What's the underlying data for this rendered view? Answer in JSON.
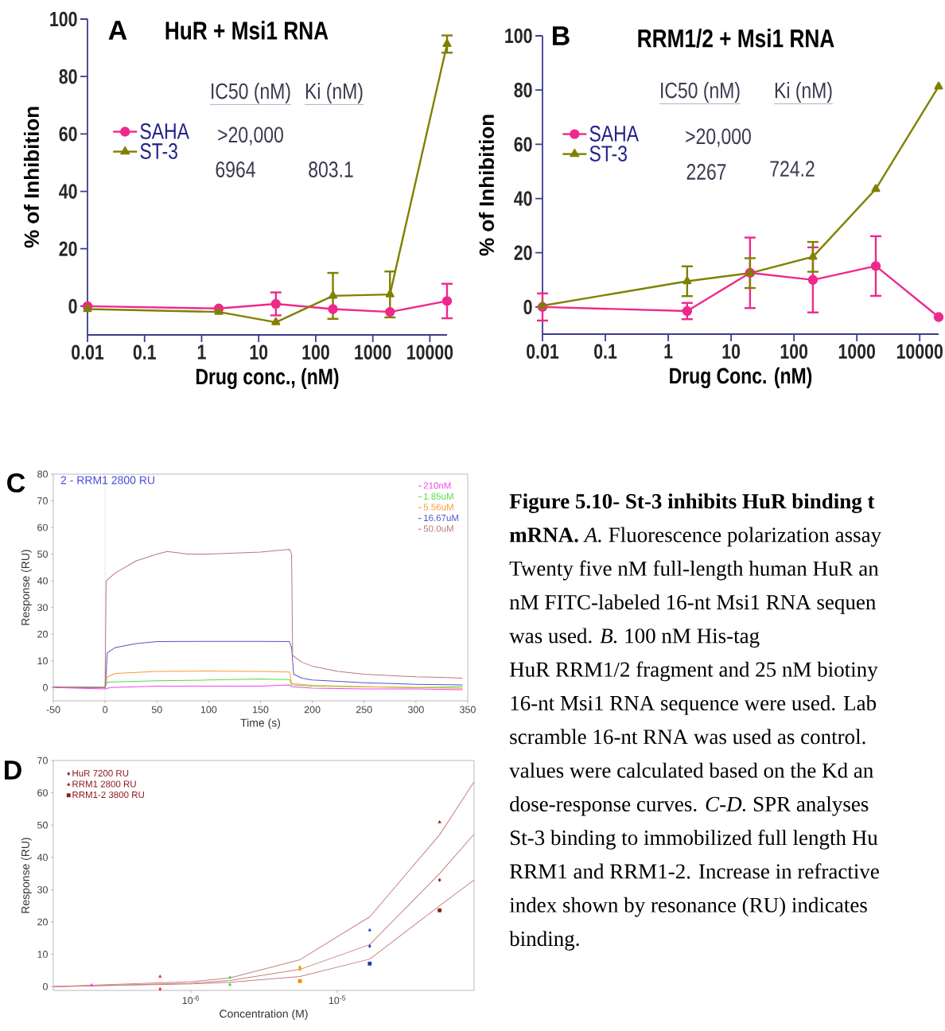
{
  "chart_data": [
    {
      "type": "line",
      "title": "HuR + Msi1 RNA",
      "xlabel": "Drug conc., (nM)",
      "ylabel": "% of Inhibition",
      "log": "x",
      "xlim": [
        0.01,
        20000
      ],
      "xticks": [
        0.01,
        0.1,
        1,
        10,
        100,
        1000,
        10000
      ],
      "ylim": [
        -10,
        100
      ],
      "yticks": [
        0,
        20,
        40,
        60,
        80,
        100
      ],
      "legend": "top left",
      "annotations": [
        "A",
        "IC50 (nM)",
        "Ki (nM)",
        ">20,000",
        "6964",
        "803.1"
      ],
      "x": [
        0.01,
        2,
        20,
        200,
        2000,
        20000
      ],
      "series": [
        {
          "name": "SAHA",
          "color": "#f0288c",
          "marker": "circle",
          "values": [
            0,
            -0.8,
            0.8,
            -1,
            -2,
            1.8
          ],
          "errors": [
            null,
            null,
            4,
            null,
            null,
            6
          ]
        },
        {
          "name": "ST-3",
          "color": "#808000",
          "marker": "triangle",
          "values": [
            -1,
            -2,
            -5.6,
            3.6,
            4.1,
            91.3
          ],
          "errors": [
            null,
            null,
            null,
            8,
            8,
            3
          ]
        }
      ]
    },
    {
      "type": "line",
      "title": "RRM1/2 + Msi1 RNA",
      "xlabel": "Drug Conc. (nM)",
      "ylabel": "% of Inhibition",
      "log": "x",
      "xlim": [
        0.01,
        20000
      ],
      "xticks": [
        0.01,
        0.1,
        1,
        10,
        100,
        1000,
        10000
      ],
      "ylim": [
        -10,
        100
      ],
      "yticks": [
        0,
        20,
        40,
        60,
        80,
        100
      ],
      "legend": "top left",
      "annotations": [
        "B",
        "IC50 (nM)",
        "Ki (nM)",
        ">20,000",
        "2267",
        "724.2"
      ],
      "x": [
        0.01,
        2,
        20,
        200,
        2000,
        20000
      ],
      "series": [
        {
          "name": "SAHA",
          "color": "#f0288c",
          "marker": "circle",
          "values": [
            0,
            -1.5,
            12.6,
            10,
            15.1,
            -3.7
          ],
          "errors": [
            5,
            3,
            13,
            12,
            11,
            null
          ]
        },
        {
          "name": "ST-3",
          "color": "#808000",
          "marker": "triangle",
          "values": [
            0.5,
            9.5,
            12.5,
            18.5,
            43.5,
            81.3
          ],
          "errors": [
            null,
            5.5,
            5.5,
            5.5,
            null,
            null
          ]
        }
      ]
    },
    {
      "type": "line",
      "title": "2 - RRM1 2800 RU",
      "xlabel": "Time (s)",
      "ylabel": "Response (RU)",
      "xlim": [
        -50,
        350
      ],
      "xticks": [
        -50,
        0,
        50,
        100,
        150,
        200,
        250,
        300,
        350
      ],
      "ylim": [
        -5,
        80
      ],
      "yticks": [
        0,
        10,
        20,
        30,
        40,
        50,
        60,
        70,
        80
      ],
      "legend": "top right",
      "annotations": [
        "C"
      ],
      "ref_lines": [
        {
          "axis": "x",
          "value": 0,
          "color": "#d8d8d8"
        }
      ],
      "series": [
        {
          "name": "210nM",
          "color": "#ee44ee",
          "x": [
            -50,
            0,
            5,
            50,
            100,
            150,
            178,
            180,
            200,
            250,
            300,
            345
          ],
          "values": [
            0,
            -0.5,
            0,
            0.5,
            0.5,
            0.5,
            1,
            0.3,
            -0.2,
            -0.5,
            -0.5,
            -0.8
          ]
        },
        {
          "name": "1.85uM",
          "color": "#55dd44",
          "x": [
            -50,
            0,
            2,
            50,
            100,
            150,
            178,
            180,
            200,
            300,
            345
          ],
          "values": [
            0.2,
            0,
            2,
            2.5,
            2.8,
            3.2,
            3,
            1,
            0.5,
            0,
            0.3
          ]
        },
        {
          "name": "5.56uM",
          "color": "#ff9933",
          "x": [
            -50,
            0,
            2,
            10,
            50,
            100,
            150,
            178,
            180,
            200,
            250,
            345
          ],
          "values": [
            0.2,
            0,
            4,
            5.3,
            6,
            6.2,
            6,
            5.8,
            1.5,
            0.8,
            0.3,
            -0.3
          ]
        },
        {
          "name": "16.67uM",
          "color": "#5555cc",
          "x": [
            -50,
            0,
            1,
            2,
            10,
            30,
            50,
            100,
            150,
            178,
            180,
            182,
            190,
            200,
            250,
            300,
            345
          ],
          "values": [
            0.2,
            0,
            5,
            13,
            15,
            16.5,
            17.2,
            17.3,
            17.3,
            17.2,
            15,
            5,
            3.5,
            2.8,
            1.8,
            1.2,
            1
          ]
        },
        {
          "name": "50.0uM",
          "color": "#b87a7a",
          "x": [
            -50,
            -10,
            0,
            1,
            10,
            30,
            50,
            60,
            80,
            100,
            120,
            150,
            170,
            178,
            180,
            181,
            190,
            200,
            225,
            250,
            275,
            300,
            325,
            345
          ],
          "values": [
            0.3,
            0,
            0,
            40,
            43,
            47.5,
            50,
            51,
            50,
            50,
            50.3,
            50.8,
            51.5,
            51.8,
            50,
            12,
            9.5,
            8,
            6,
            5,
            4.5,
            4,
            3.8,
            3.5
          ]
        }
      ]
    },
    {
      "type": "scatter",
      "xlabel": "Concentration (M)",
      "ylabel": "Response (RU)",
      "log": "x",
      "xlim": [
        1.15e-07,
        8.6e-05
      ],
      "xticks": [
        {
          "value": 1e-06,
          "label": "10$^{-6}$"
        },
        {
          "value": 1e-05,
          "label": "10$^{-5}$"
        }
      ],
      "ylim": [
        -1.2,
        70
      ],
      "yticks": [
        0,
        10,
        20,
        30,
        40,
        50,
        60,
        70
      ],
      "legend": "top left",
      "annotations": [
        "D"
      ],
      "series": [
        {
          "name": "HuR 7200 RU",
          "color": "#8b1a1a",
          "marker": "diamond",
          "x": [
            6.17e-07,
            1.85e-06,
            5.56e-06,
            1.667e-05,
            5e-05
          ],
          "values": [
            -0.8,
            0.6,
            5.3,
            12.5,
            33
          ],
          "colors": [
            "#ff2222",
            "#33dd33",
            "#ff8800",
            "#2233bb",
            "#8b1a1a"
          ]
        },
        {
          "name": "RRM1 2800 RU",
          "color": "#8b1a1a",
          "marker": "triangle",
          "x": [
            2.1e-07,
            6.17e-07,
            1.85e-06,
            5.56e-06,
            1.667e-05,
            5e-05
          ],
          "values": [
            0.5,
            3.1,
            2.8,
            6,
            17.5,
            50.9
          ],
          "colors": [
            "#ff33ff",
            "#ff2222",
            "#33dd33",
            "#ff8800",
            "#2233bb",
            "#8b1a1a"
          ]
        },
        {
          "name": "RRM1-2 3800 RU",
          "color": "#8b1a1a",
          "marker": "square",
          "x": [
            5.56e-06,
            1.667e-05,
            5e-05
          ],
          "values": [
            1.7,
            7.1,
            23.6
          ],
          "colors": [
            "#ff8800",
            "#2233bb",
            "#8b1a1a"
          ]
        },
        {
          "type": "line",
          "color": "#c88080",
          "x": [
            1.15e-07,
            1e-06,
            1.85e-06,
            5.56e-06,
            1.667e-05,
            5e-05,
            8.6e-05
          ],
          "values": [
            0,
            1.5,
            2.7,
            8.3,
            21.6,
            47,
            63.4
          ]
        },
        {
          "type": "line",
          "color": "#c88080",
          "x": [
            1.15e-07,
            1e-06,
            1.85e-06,
            5.56e-06,
            1.667e-05,
            5e-05,
            8.6e-05
          ],
          "values": [
            0,
            1,
            1.9,
            5.3,
            13,
            35,
            47.2
          ]
        },
        {
          "type": "line",
          "color": "#c88080",
          "x": [
            1.15e-07,
            1e-06,
            1.85e-06,
            5.56e-06,
            1.667e-05,
            5e-05,
            8.6e-05
          ],
          "values": [
            0,
            0.8,
            1.3,
            3.1,
            8.5,
            25,
            33
          ]
        }
      ]
    },
    {
      "type": "other",
      "annotations": [
        "**Figure 5.10- St-3 inhibits HuR binding t**",
        "**mRNA.** *A.* Fluorescence polarization assay",
        "Twenty five nM full-length human HuR an",
        "nM FITC-labeled 16-nt Msi1 RNA sequen",
        "was used. *B.* 100 nM His-tag",
        "HuR RRM1/2 fragment and 25 nM biotiny",
        "16-nt Msi1 RNA sequence were used. Lab",
        "scramble 16-nt RNA was used as control.",
        "values were calculated based on the Kd an",
        "dose-response curves. *C-D.* SPR analyses",
        "St-3 binding to immobilized full length Hu",
        "RRM1 and RRM1-2. Increase in refractive",
        "index shown by resonance (RU) indicates",
        "binding."
      ]
    }
  ]
}
